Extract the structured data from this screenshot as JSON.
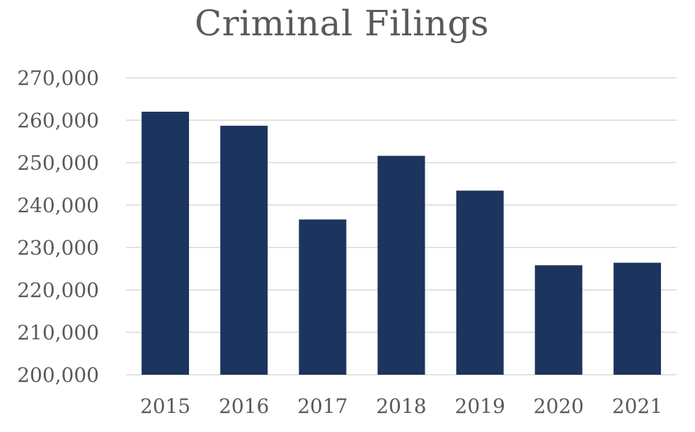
{
  "chart_data": {
    "type": "bar",
    "title": "Criminal Filings",
    "xlabel": "",
    "ylabel": "",
    "categories": [
      "2015",
      "2016",
      "2017",
      "2018",
      "2019",
      "2020",
      "2021"
    ],
    "values": [
      262000,
      258700,
      236600,
      251600,
      243400,
      225800,
      226400
    ],
    "ylim": [
      200000,
      270000
    ],
    "yticks": [
      200000,
      210000,
      220000,
      230000,
      240000,
      250000,
      260000,
      270000
    ],
    "ytick_labels": [
      "200,000",
      "210,000",
      "220,000",
      "230,000",
      "240,000",
      "250,000",
      "260,000",
      "270,000"
    ],
    "grid": true,
    "legend": "none",
    "bar_color": "#1c355e"
  }
}
